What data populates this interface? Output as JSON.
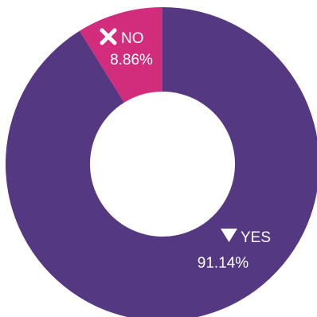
{
  "chart_data": {
    "type": "pie",
    "donut": true,
    "slices": [
      {
        "name": "YES",
        "value": 91.14,
        "value_label": "91.14%",
        "icon": "down-triangle-icon",
        "color": "#553882"
      },
      {
        "name": "NO",
        "value": 8.86,
        "value_label": "8.86%",
        "icon": "x-mark-icon",
        "color": "#D22C7C"
      }
    ],
    "start": "top",
    "direction": "clockwise",
    "legend": "none"
  }
}
